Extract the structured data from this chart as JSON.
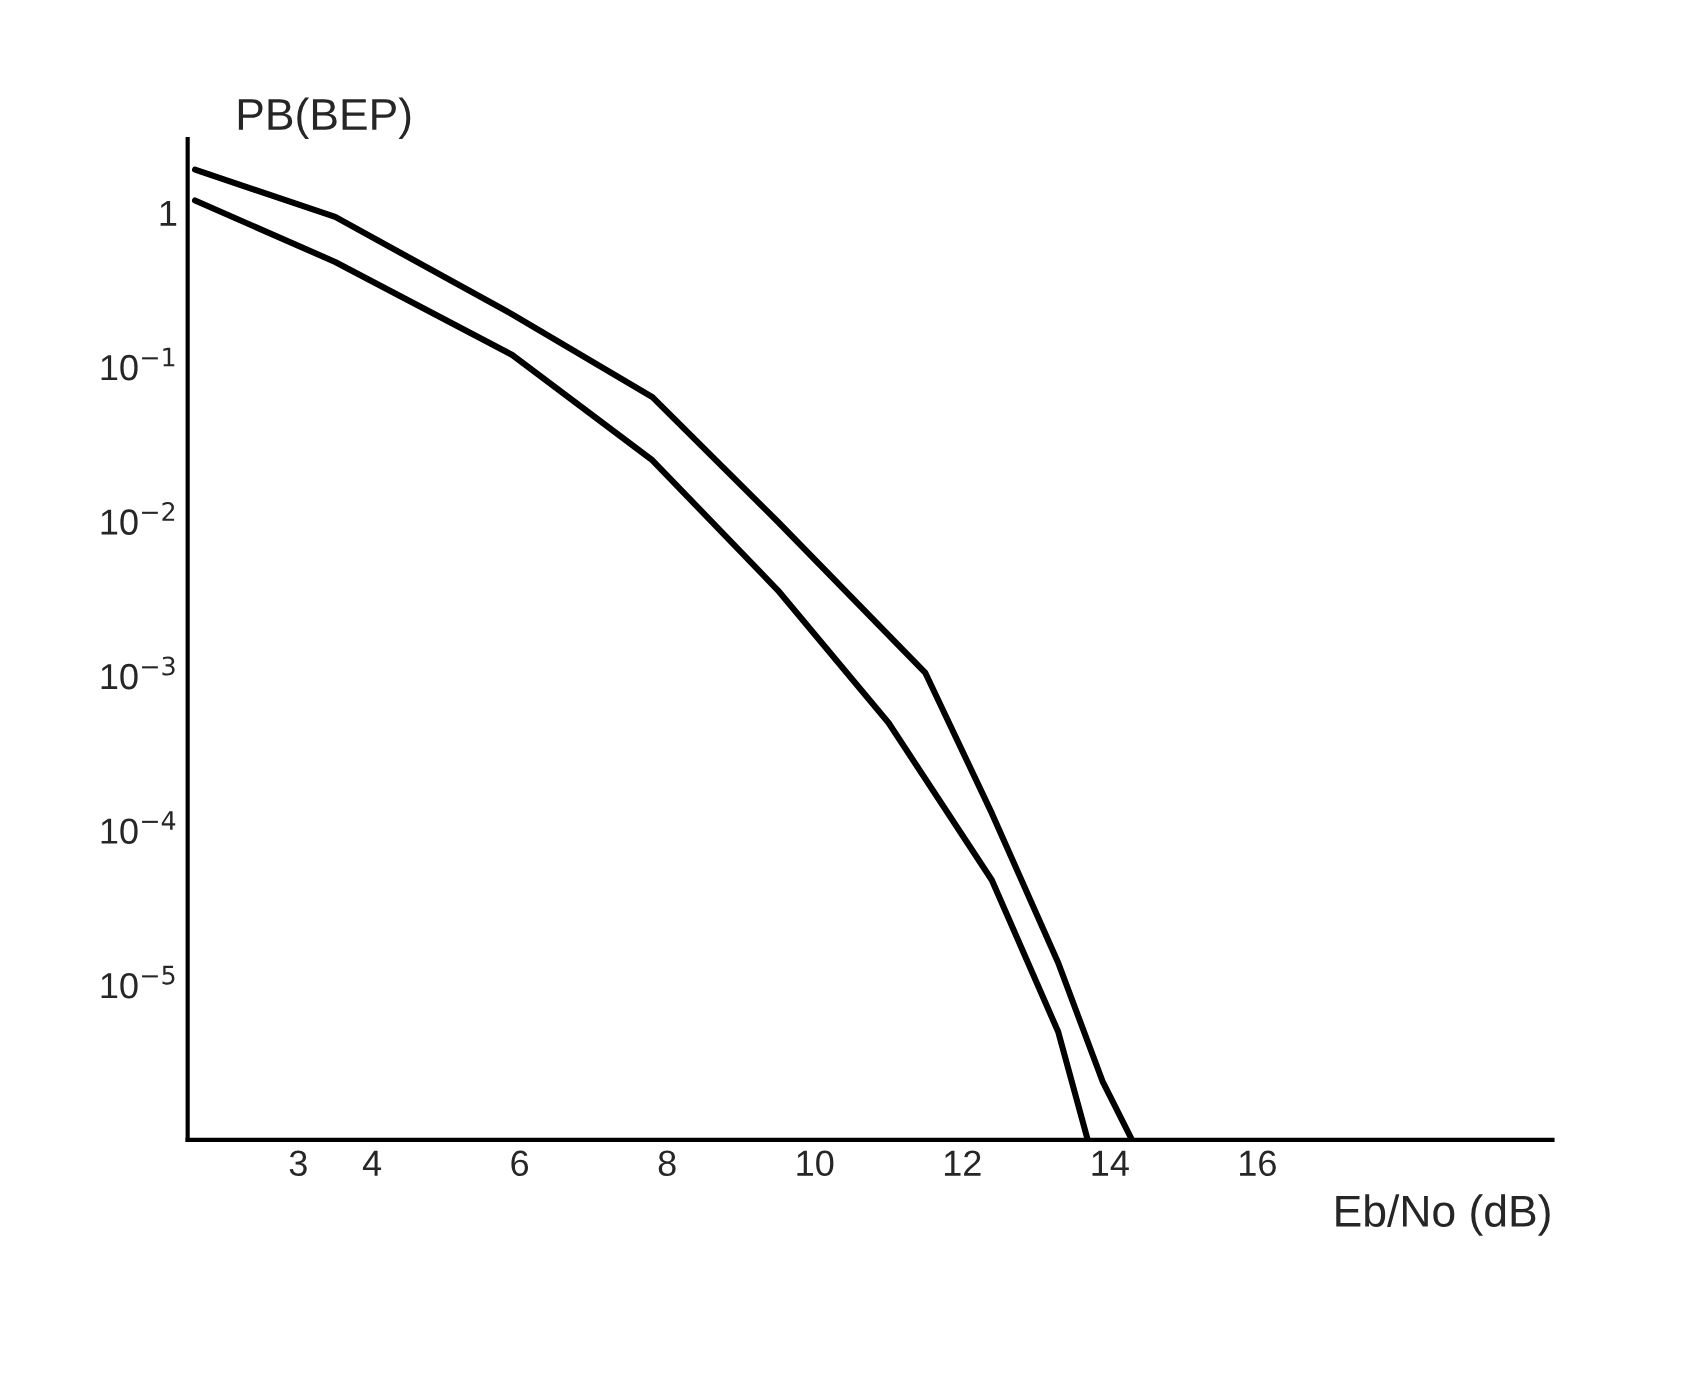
{
  "chart_data": {
    "type": "line",
    "ylabel": "PB(BEP)",
    "xlabel": "Eb/No (dB)",
    "series": [
      {
        "color": "#000000",
        "x": [
          1.6,
          3.5,
          5.9,
          7.8,
          9.5,
          11.5,
          12.4,
          13.3,
          13.9,
          14.3
        ],
        "values": [
          1.9,
          0.94,
          0.22,
          0.064,
          0.01,
          0.00105,
          0.00013,
          1.4e-05,
          2.4e-06,
          1e-06
        ]
      },
      {
        "color": "#000000",
        "x": [
          1.6,
          3.5,
          5.9,
          7.8,
          9.5,
          11.0,
          12.4,
          13.3,
          13.7
        ],
        "values": [
          1.2,
          0.48,
          0.12,
          0.025,
          0.0036,
          0.0005,
          4.8e-05,
          5e-06,
          1e-06
        ]
      }
    ],
    "log": "y",
    "xlim": [
      1.5,
      20
    ],
    "ylim": [
      1e-06,
      3
    ],
    "xticks": [
      3,
      4,
      6,
      8,
      10,
      12,
      14,
      16
    ],
    "yticks": [
      {
        "value": 1,
        "label": "1"
      },
      {
        "value": 0.1,
        "label": "10$^{−1}$"
      },
      {
        "value": 0.01,
        "label": "10$^{−2}$"
      },
      {
        "value": 0.001,
        "label": "10$^{−3}$"
      },
      {
        "value": 0.0001,
        "label": "10$^{−4}$"
      },
      {
        "value": 1e-05,
        "label": "10$^{−5}$"
      }
    ],
    "grid": false,
    "legend": false,
    "line_style": "solid",
    "marker": "none"
  }
}
